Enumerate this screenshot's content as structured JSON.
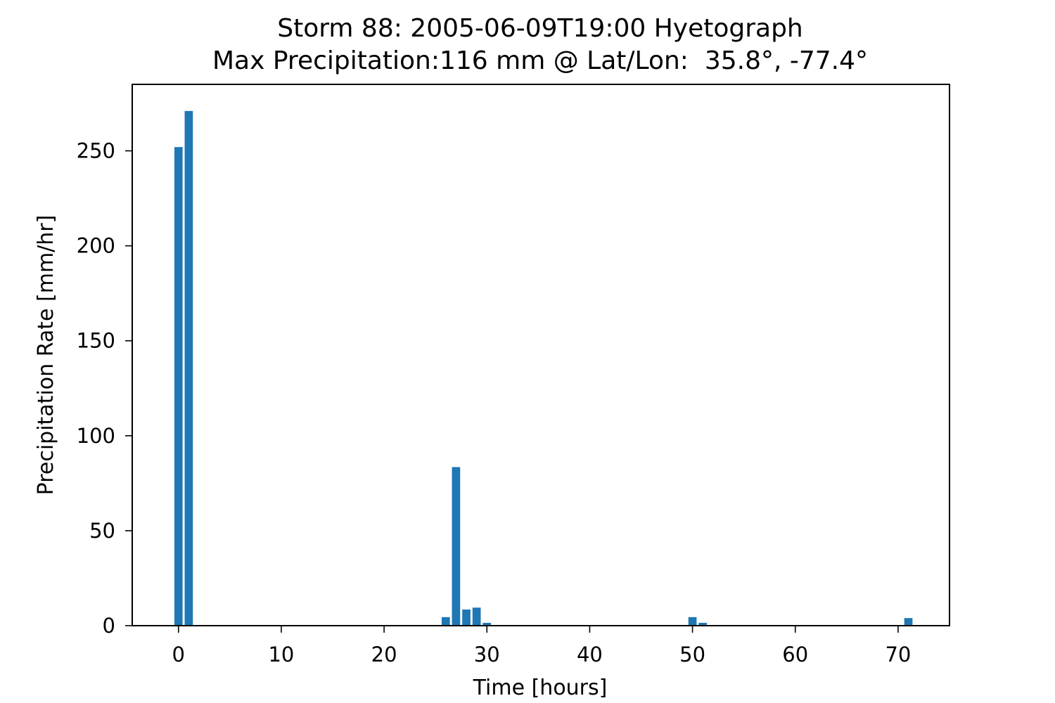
{
  "chart_data": {
    "type": "bar",
    "title": "Storm 88: 2005-06-09T19:00 Hyetograph",
    "subtitle": "Max Precipitation:116 mm @ Lat/Lon:  35.8°, -77.4°",
    "xlabel": "Time [hours]",
    "ylabel": "Precipitation Rate [mm/hr]",
    "xlim": [
      -4.5,
      75
    ],
    "ylim": [
      0,
      285
    ],
    "xticks": [
      0,
      10,
      20,
      30,
      40,
      50,
      60,
      70
    ],
    "yticks": [
      0,
      50,
      100,
      150,
      200,
      250
    ],
    "bar_width": 0.8,
    "grid": false,
    "bar_color": "#1f77b4",
    "x": [
      0,
      1,
      26,
      27,
      28,
      29,
      30,
      50,
      51,
      71
    ],
    "values": [
      252,
      271,
      4.5,
      83.5,
      8.5,
      9.5,
      1.5,
      4.5,
      1.5,
      4
    ]
  }
}
